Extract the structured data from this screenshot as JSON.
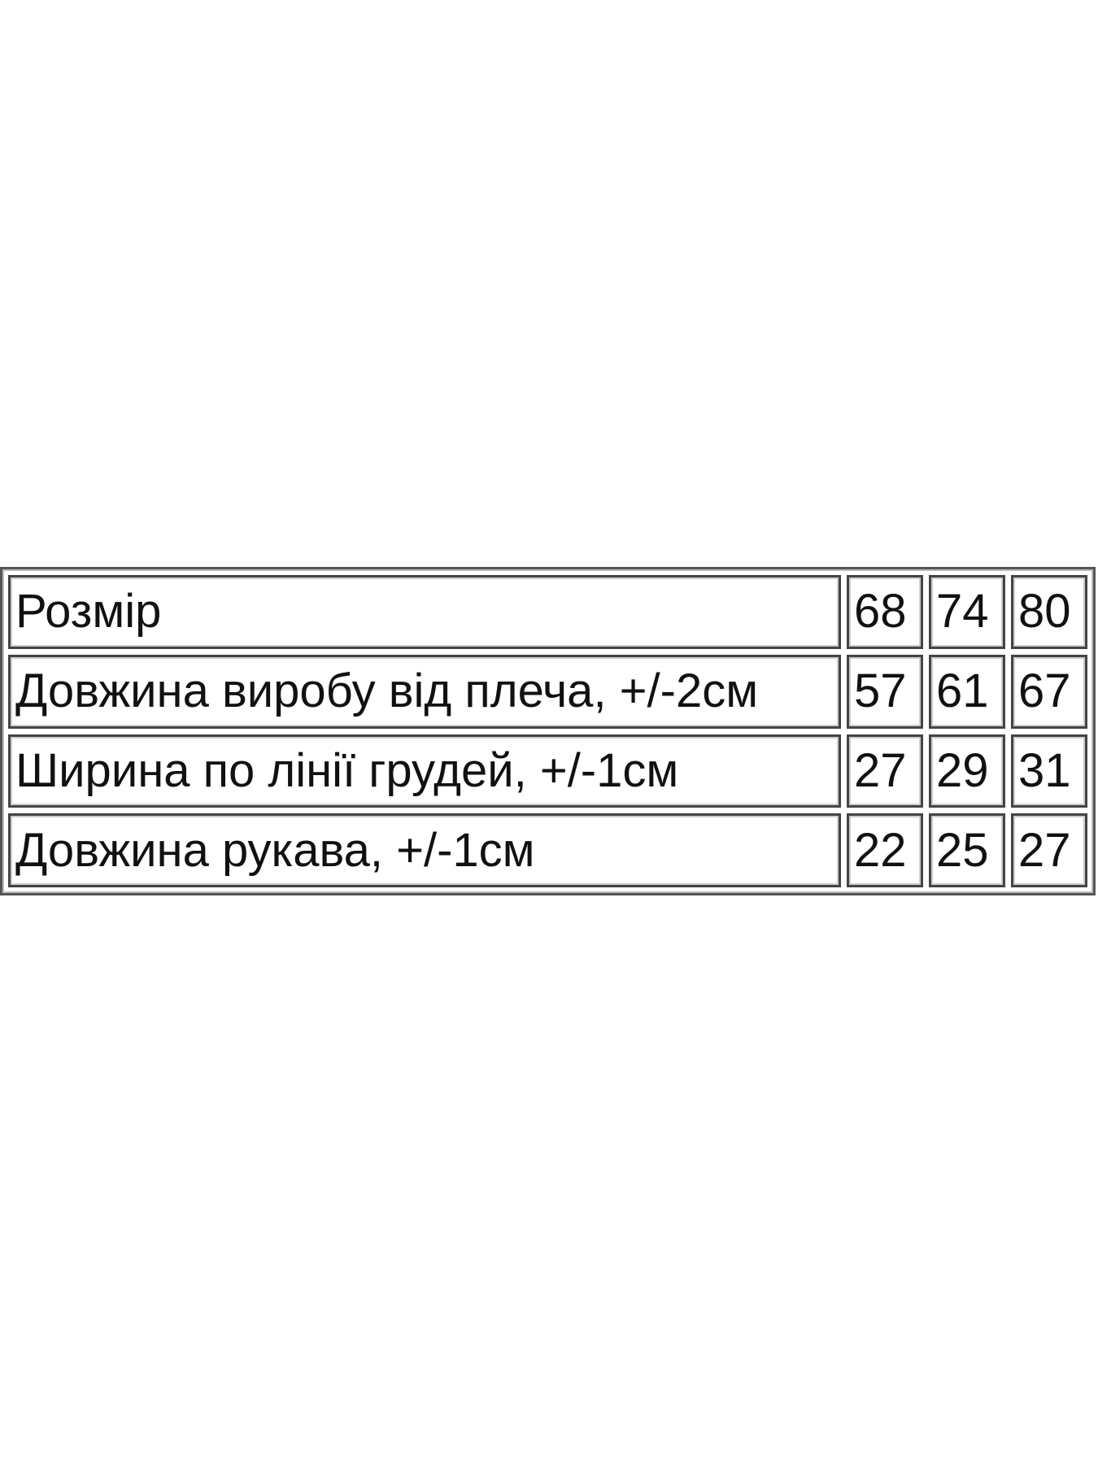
{
  "table": {
    "header": {
      "label": "Розмір",
      "sizes": [
        "68",
        "74",
        "80"
      ]
    },
    "rows": [
      {
        "label": "Довжина виробу від плеча, +/-2см",
        "values": [
          "57",
          "61",
          "67"
        ]
      },
      {
        "label": "Ширина по лінії грудей, +/-1см",
        "values": [
          "27",
          "29",
          "31"
        ]
      },
      {
        "label": "Довжина рукава, +/-1см",
        "values": [
          "22",
          "25",
          "27"
        ]
      }
    ]
  }
}
